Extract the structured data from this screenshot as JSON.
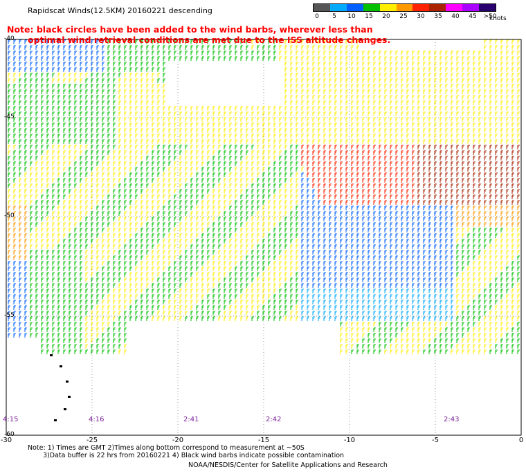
{
  "title": "Rapidscat Winds(12.5KM) 20160221 descending",
  "note_line1": "Note: black circles have been added to the wind barbs, wherever less than",
  "note_line2": "optimal wind retrieval conditions are met due to the ISS altitude changes.",
  "legend": {
    "labels": [
      "0",
      "5",
      "10",
      "15",
      "20",
      "25",
      "30",
      "35",
      "40",
      "45",
      ">50"
    ],
    "unit": "knots",
    "colors": [
      "#555555",
      "#00aaff",
      "#0060ff",
      "#00c000",
      "#ffee00",
      "#ff9900",
      "#ff2200",
      "#aa2200",
      "#ff00ff",
      "#aa00ff",
      "#2a0070"
    ]
  },
  "x_axis_labels": [
    "-30",
    "-25",
    "-20",
    "-15",
    "-10",
    "-5",
    "0"
  ],
  "y_axis_labels": [
    "-40",
    "-45",
    "-50",
    "-55",
    "-60"
  ],
  "time_labels": [
    "4:15",
    "4:16",
    "2:41",
    "2:42",
    "2:43"
  ],
  "footer": {
    "line1": "Note: 1) Times are GMT 2)Times along bottom correspond to measurement at ~50S",
    "line2": "3)Data buffer is 22 hrs from 20160221 4) Black wind barbs indicate possible contamination",
    "line3": "NOAA/NESDIS/Center for Satellite Applications and Research"
  }
}
